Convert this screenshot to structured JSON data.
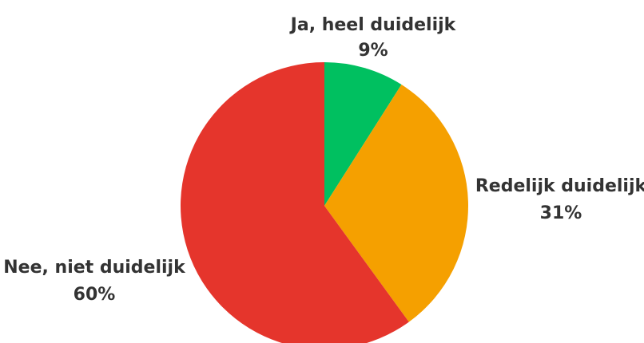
{
  "chart_data": {
    "type": "pie",
    "title": "",
    "categories": [
      "Ja, heel duidelijk",
      "Redelijk duidelijk",
      "Nee, niet duidelijk"
    ],
    "values": [
      9,
      31,
      60
    ],
    "value_labels": [
      "9%",
      "31%",
      "60%"
    ],
    "colors": [
      "#00c060",
      "#f5a000",
      "#e5352c"
    ],
    "start_angle": "12 o'clock",
    "direction": "clockwise",
    "legend": "none",
    "data_labels": "outside, category name above percentage"
  }
}
